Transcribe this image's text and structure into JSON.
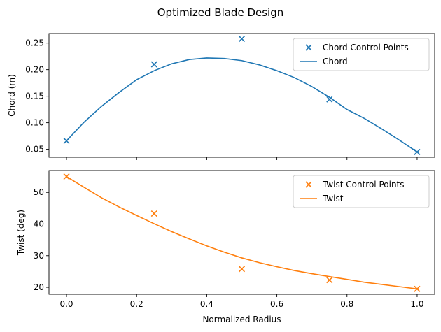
{
  "figure": {
    "title": "Optimized Blade Design"
  },
  "chart_data": [
    {
      "type": "line",
      "ylabel": "Chord (m)",
      "xlabel": "",
      "xlim": [
        -0.05,
        1.05
      ],
      "ylim": [
        0.035,
        0.268
      ],
      "yticks": [
        0.05,
        0.1,
        0.15,
        0.2,
        0.25
      ],
      "ytick_labels": [
        "0.05",
        "0.10",
        "0.15",
        "0.20",
        "0.25"
      ],
      "xticks": [
        0.0,
        0.2,
        0.4,
        0.6,
        0.8,
        1.0
      ],
      "xtick_labels": [
        "",
        "",
        "",
        "",
        "",
        ""
      ],
      "legend": "top-right",
      "series": [
        {
          "name": "Chord Control Points",
          "kind": "scatter",
          "marker": "x",
          "color": "#1f77b4",
          "x": [
            0.0,
            0.25,
            0.5,
            0.75,
            1.0
          ],
          "y": [
            0.066,
            0.21,
            0.258,
            0.144,
            0.045
          ]
        },
        {
          "name": "Chord",
          "kind": "line",
          "color": "#1f77b4",
          "x": [
            0.0,
            0.05,
            0.1,
            0.15,
            0.2,
            0.25,
            0.3,
            0.35,
            0.4,
            0.45,
            0.5,
            0.55,
            0.6,
            0.65,
            0.7,
            0.75,
            0.8,
            0.85,
            0.9,
            0.95,
            1.0
          ],
          "y": [
            0.066,
            0.101,
            0.131,
            0.157,
            0.181,
            0.198,
            0.211,
            0.219,
            0.222,
            0.221,
            0.217,
            0.209,
            0.198,
            0.185,
            0.168,
            0.148,
            0.125,
            0.108,
            0.088,
            0.067,
            0.045
          ]
        }
      ]
    },
    {
      "type": "line",
      "ylabel": "Twist (deg)",
      "xlabel": "Normalized Radius",
      "xlim": [
        -0.05,
        1.05
      ],
      "ylim": [
        17.8,
        56.9
      ],
      "yticks": [
        20,
        30,
        40,
        50
      ],
      "ytick_labels": [
        "20",
        "30",
        "40",
        "50"
      ],
      "xticks": [
        0.0,
        0.2,
        0.4,
        0.6,
        0.8,
        1.0
      ],
      "xtick_labels": [
        "0.0",
        "0.2",
        "0.4",
        "0.6",
        "0.8",
        "1.0"
      ],
      "legend": "top-right",
      "series": [
        {
          "name": "Twist Control Points",
          "kind": "scatter",
          "marker": "x",
          "color": "#ff7f0e",
          "x": [
            0.0,
            0.25,
            0.5,
            0.75,
            1.0
          ],
          "y": [
            55.0,
            43.3,
            25.8,
            22.3,
            19.5
          ]
        },
        {
          "name": "Twist",
          "kind": "line",
          "color": "#ff7f0e",
          "x": [
            0.0,
            0.05,
            0.1,
            0.15,
            0.2,
            0.25,
            0.3,
            0.35,
            0.4,
            0.45,
            0.5,
            0.55,
            0.6,
            0.65,
            0.7,
            0.75,
            0.8,
            0.85,
            0.9,
            0.95,
            1.0
          ],
          "y": [
            55.0,
            51.6,
            48.3,
            45.4,
            42.7,
            40.1,
            37.6,
            35.3,
            33.1,
            31.1,
            29.3,
            27.8,
            26.5,
            25.3,
            24.3,
            23.4,
            22.5,
            21.6,
            20.9,
            20.2,
            19.5
          ]
        }
      ]
    }
  ]
}
